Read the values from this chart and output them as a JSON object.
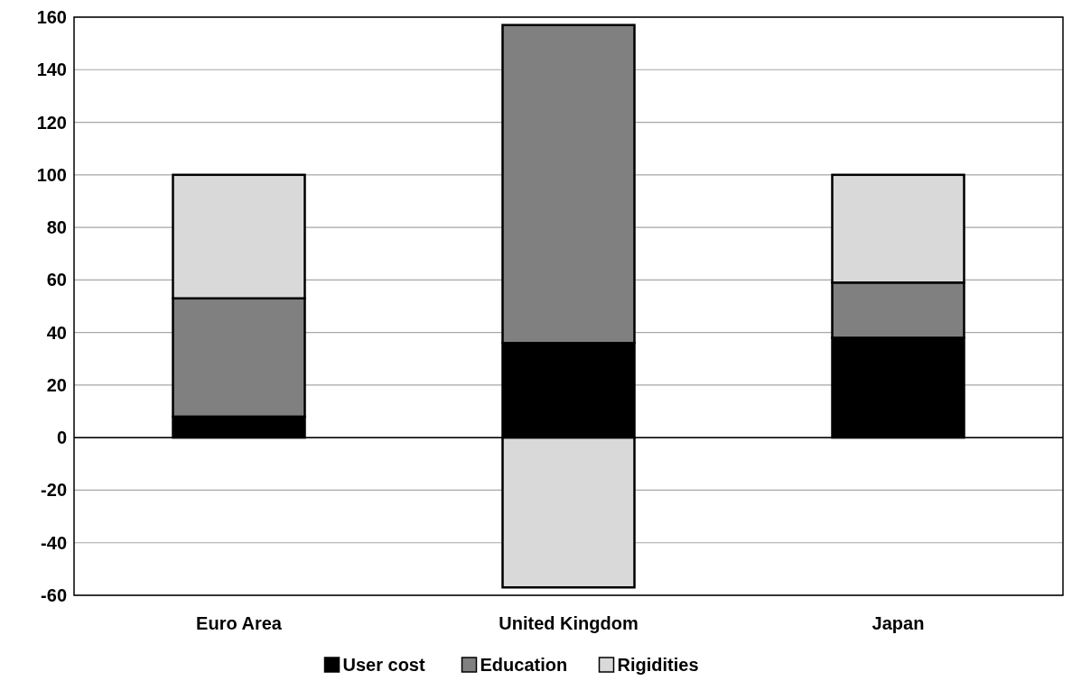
{
  "chart_data": {
    "type": "bar",
    "stacked": true,
    "categories": [
      "Euro Area",
      "United Kingdom",
      "Japan"
    ],
    "series": [
      {
        "name": "User cost",
        "color": "#000000",
        "values": [
          8,
          36,
          38
        ]
      },
      {
        "name": "Education",
        "color": "#808080",
        "values": [
          45,
          121,
          21
        ]
      },
      {
        "name": "Rigidities",
        "color": "#d9d9d9",
        "values": [
          47,
          -57,
          41
        ]
      }
    ],
    "ylim": [
      -60,
      160
    ],
    "yticks": [
      -60,
      -40,
      -20,
      0,
      20,
      40,
      60,
      80,
      100,
      120,
      140,
      160
    ],
    "grid": "y",
    "legend": "bottom"
  }
}
